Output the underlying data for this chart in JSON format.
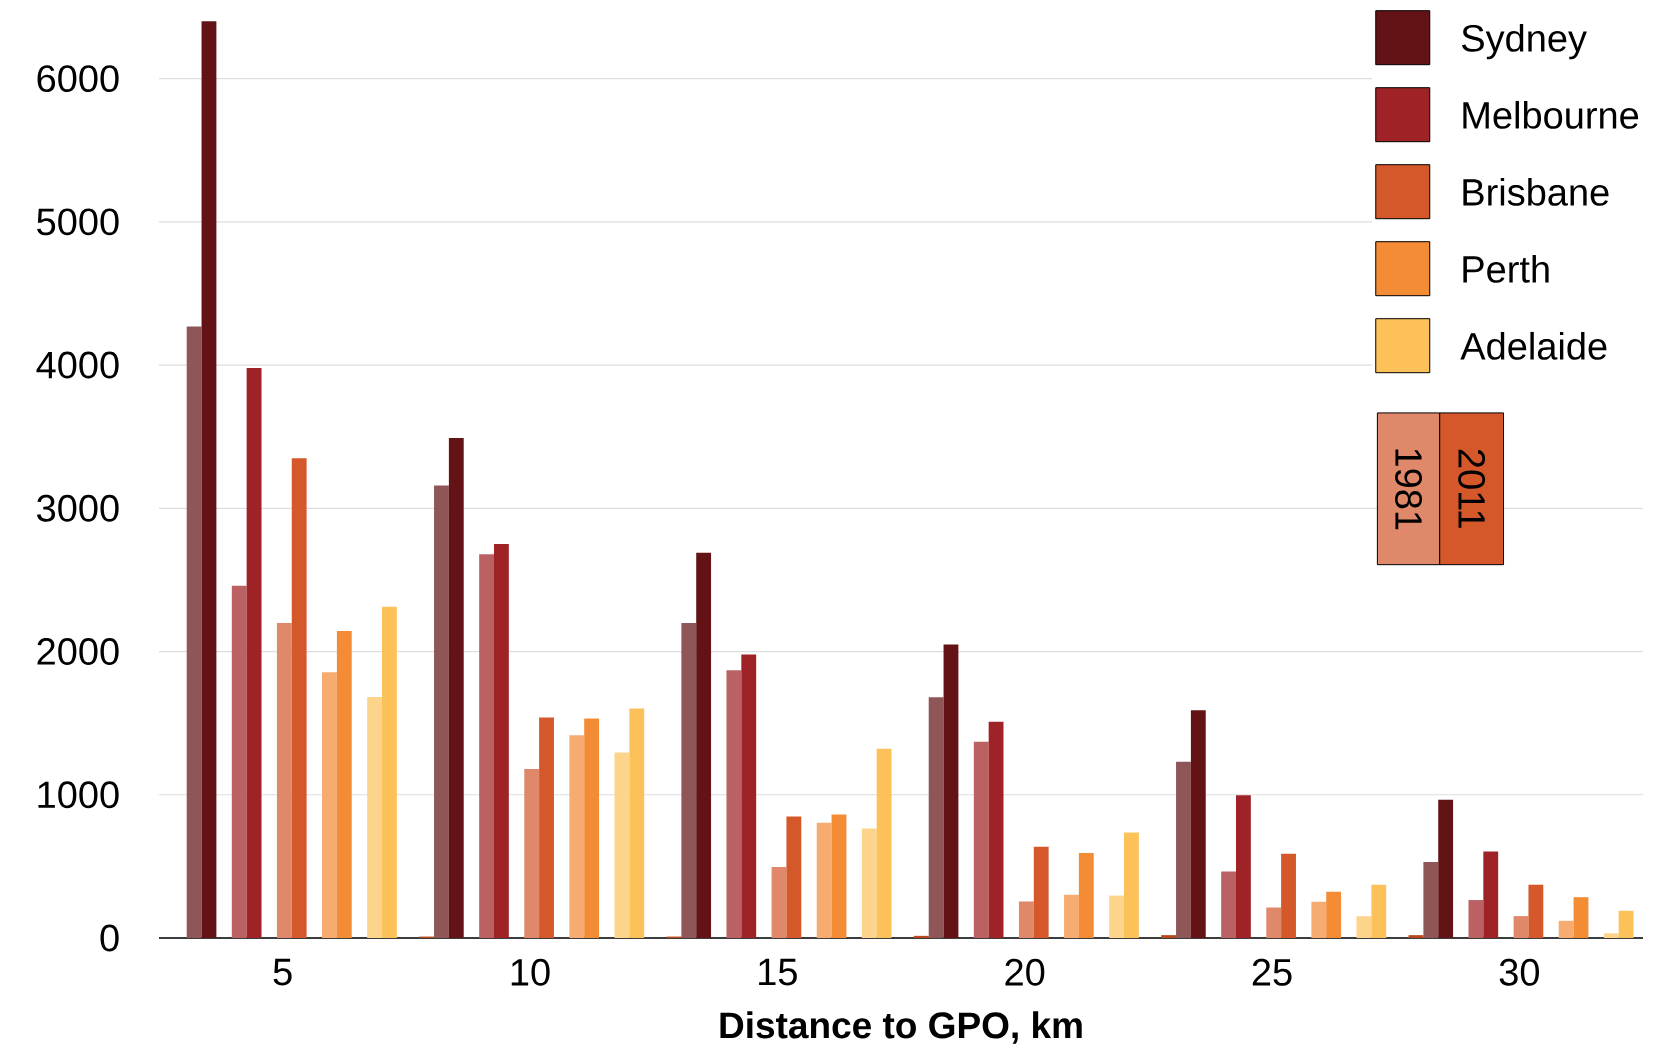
{
  "chart_data": {
    "type": "bar",
    "xlabel": "Distance to GPO, km",
    "categories": [
      "5",
      "10",
      "15",
      "20",
      "25",
      "30"
    ],
    "series": [
      {
        "color": "#8f5658",
        "values": [
          4270,
          3160,
          2200,
          1680,
          1230,
          530
        ]
      },
      {
        "name": "Sydney",
        "color": "#631316",
        "values": [
          6400,
          3490,
          2690,
          2050,
          1590,
          965
        ]
      },
      {
        "color": "#bb6164",
        "values": [
          2460,
          2680,
          1870,
          1370,
          465,
          265
        ]
      },
      {
        "name": "Melbourne",
        "color": "#9e2226",
        "values": [
          3980,
          2750,
          1980,
          1510,
          996,
          604
        ]
      },
      {
        "color": "#e0896a",
        "values": [
          2200,
          1180,
          495,
          255,
          213,
          153
        ]
      },
      {
        "name": "Brisbane",
        "color": "#d4582a",
        "values": [
          3350,
          1540,
          848,
          637,
          588,
          372
        ]
      },
      {
        "color": "#f6ab70",
        "values": [
          1856,
          1415,
          805,
          302,
          253,
          120
        ]
      },
      {
        "name": "Perth",
        "color": "#f48b35",
        "values": [
          2143,
          1532,
          863,
          594,
          323,
          285
        ]
      },
      {
        "color": "#fdd48b",
        "values": [
          1682,
          1295,
          764,
          296,
          152,
          33
        ]
      },
      {
        "name": "Adelaide",
        "color": "#fdc15a",
        "values": [
          2312,
          1602,
          1322,
          737,
          372,
          190
        ]
      },
      {
        "color": "#b8481c",
        "values": [
          null,
          10,
          10,
          15,
          20,
          20
        ]
      }
    ],
    "ylim": [
      0,
      6500
    ],
    "yticks": [
      0,
      1000,
      2000,
      3000,
      4000,
      5000,
      6000
    ],
    "grid": "y",
    "legend": "top right",
    "annotations": [
      "1981",
      "2011"
    ]
  }
}
